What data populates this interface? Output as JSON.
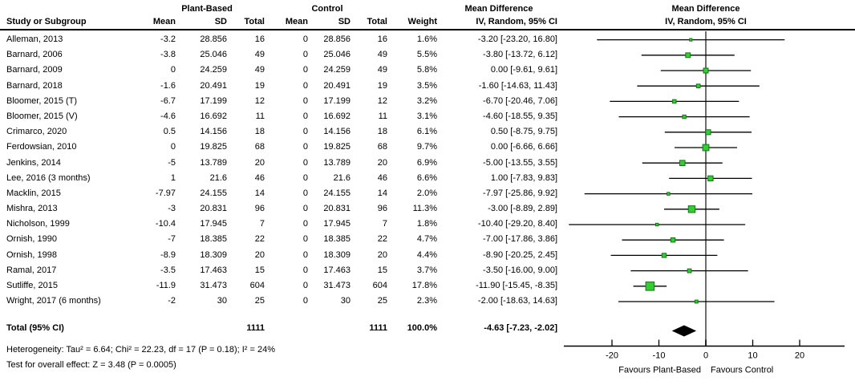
{
  "table": {
    "group1_header": "Plant-Based",
    "group2_header": "Control",
    "md_text_header": "Mean Difference",
    "columns": {
      "study": "Study or Subgroup",
      "mean1": "Mean",
      "sd1": "SD",
      "total1": "Total",
      "mean2": "Mean",
      "sd2": "SD",
      "total2": "Total",
      "weight": "Weight",
      "ci": "IV, Random, 95% CI"
    }
  },
  "plot_header": {
    "line1": "Mean Difference",
    "line2": "IV, Random, 95% CI"
  },
  "chart_data": {
    "type": "forest",
    "effect_measure": "Mean Difference",
    "model": "IV, Random, 95% CI",
    "studies": [
      {
        "name": "Alleman, 2013",
        "mean1": "-3.2",
        "sd1": "28.856",
        "n1": "16",
        "mean2": "0",
        "sd2": "28.856",
        "n2": "16",
        "weight": "1.6%",
        "weight_val": 1.6,
        "ci": "-3.20 [-23.20, 16.80]",
        "md": -3.2,
        "lo": -23.2,
        "hi": 16.8
      },
      {
        "name": "Barnard, 2006",
        "mean1": "-3.8",
        "sd1": "25.046",
        "n1": "49",
        "mean2": "0",
        "sd2": "25.046",
        "n2": "49",
        "weight": "5.5%",
        "weight_val": 5.5,
        "ci": "-3.80 [-13.72, 6.12]",
        "md": -3.8,
        "lo": -13.72,
        "hi": 6.12
      },
      {
        "name": "Barnard, 2009",
        "mean1": "0",
        "sd1": "24.259",
        "n1": "49",
        "mean2": "0",
        "sd2": "24.259",
        "n2": "49",
        "weight": "5.8%",
        "weight_val": 5.8,
        "ci": "0.00 [-9.61, 9.61]",
        "md": 0,
        "lo": -9.61,
        "hi": 9.61
      },
      {
        "name": "Barnard, 2018",
        "mean1": "-1.6",
        "sd1": "20.491",
        "n1": "19",
        "mean2": "0",
        "sd2": "20.491",
        "n2": "19",
        "weight": "3.5%",
        "weight_val": 3.5,
        "ci": "-1.60 [-14.63, 11.43]",
        "md": -1.6,
        "lo": -14.63,
        "hi": 11.43
      },
      {
        "name": "Bloomer, 2015 (T)",
        "mean1": "-6.7",
        "sd1": "17.199",
        "n1": "12",
        "mean2": "0",
        "sd2": "17.199",
        "n2": "12",
        "weight": "3.2%",
        "weight_val": 3.2,
        "ci": "-6.70 [-20.46, 7.06]",
        "md": -6.7,
        "lo": -20.46,
        "hi": 7.06
      },
      {
        "name": "Bloomer, 2015 (V)",
        "mean1": "-4.6",
        "sd1": "16.692",
        "n1": "11",
        "mean2": "0",
        "sd2": "16.692",
        "n2": "11",
        "weight": "3.1%",
        "weight_val": 3.1,
        "ci": "-4.60 [-18.55, 9.35]",
        "md": -4.6,
        "lo": -18.55,
        "hi": 9.35
      },
      {
        "name": "Crimarco, 2020",
        "mean1": "0.5",
        "sd1": "14.156",
        "n1": "18",
        "mean2": "0",
        "sd2": "14.156",
        "n2": "18",
        "weight": "6.1%",
        "weight_val": 6.1,
        "ci": "0.50 [-8.75, 9.75]",
        "md": 0.5,
        "lo": -8.75,
        "hi": 9.75
      },
      {
        "name": "Ferdowsian, 2010",
        "mean1": "0",
        "sd1": "19.825",
        "n1": "68",
        "mean2": "0",
        "sd2": "19.825",
        "n2": "68",
        "weight": "9.7%",
        "weight_val": 9.7,
        "ci": "0.00 [-6.66, 6.66]",
        "md": 0,
        "lo": -6.66,
        "hi": 6.66
      },
      {
        "name": "Jenkins, 2014",
        "mean1": "-5",
        "sd1": "13.789",
        "n1": "20",
        "mean2": "0",
        "sd2": "13.789",
        "n2": "20",
        "weight": "6.9%",
        "weight_val": 6.9,
        "ci": "-5.00 [-13.55, 3.55]",
        "md": -5,
        "lo": -13.55,
        "hi": 3.55
      },
      {
        "name": "Lee, 2016 (3 months)",
        "mean1": "1",
        "sd1": "21.6",
        "n1": "46",
        "mean2": "0",
        "sd2": "21.6",
        "n2": "46",
        "weight": "6.6%",
        "weight_val": 6.6,
        "ci": "1.00 [-7.83, 9.83]",
        "md": 1,
        "lo": -7.83,
        "hi": 9.83
      },
      {
        "name": "Macklin, 2015",
        "mean1": "-7.97",
        "sd1": "24.155",
        "n1": "14",
        "mean2": "0",
        "sd2": "24.155",
        "n2": "14",
        "weight": "2.0%",
        "weight_val": 2.0,
        "ci": "-7.97 [-25.86, 9.92]",
        "md": -7.97,
        "lo": -25.86,
        "hi": 9.92
      },
      {
        "name": "Mishra, 2013",
        "mean1": "-3",
        "sd1": "20.831",
        "n1": "96",
        "mean2": "0",
        "sd2": "20.831",
        "n2": "96",
        "weight": "11.3%",
        "weight_val": 11.3,
        "ci": "-3.00 [-8.89, 2.89]",
        "md": -3,
        "lo": -8.89,
        "hi": 2.89
      },
      {
        "name": "Nicholson, 1999",
        "mean1": "-10.4",
        "sd1": "17.945",
        "n1": "7",
        "mean2": "0",
        "sd2": "17.945",
        "n2": "7",
        "weight": "1.8%",
        "weight_val": 1.8,
        "ci": "-10.40 [-29.20, 8.40]",
        "md": -10.4,
        "lo": -29.2,
        "hi": 8.4
      },
      {
        "name": "Ornish, 1990",
        "mean1": "-7",
        "sd1": "18.385",
        "n1": "22",
        "mean2": "0",
        "sd2": "18.385",
        "n2": "22",
        "weight": "4.7%",
        "weight_val": 4.7,
        "ci": "-7.00 [-17.86, 3.86]",
        "md": -7,
        "lo": -17.86,
        "hi": 3.86
      },
      {
        "name": "Ornish, 1998",
        "mean1": "-8.9",
        "sd1": "18.309",
        "n1": "20",
        "mean2": "0",
        "sd2": "18.309",
        "n2": "20",
        "weight": "4.4%",
        "weight_val": 4.4,
        "ci": "-8.90 [-20.25, 2.45]",
        "md": -8.9,
        "lo": -20.25,
        "hi": 2.45
      },
      {
        "name": "Ramal, 2017",
        "mean1": "-3.5",
        "sd1": "17.463",
        "n1": "15",
        "mean2": "0",
        "sd2": "17.463",
        "n2": "15",
        "weight": "3.7%",
        "weight_val": 3.7,
        "ci": "-3.50 [-16.00, 9.00]",
        "md": -3.5,
        "lo": -16.0,
        "hi": 9.0
      },
      {
        "name": "Sutliffe, 2015",
        "mean1": "-11.9",
        "sd1": "31.473",
        "n1": "604",
        "mean2": "0",
        "sd2": "31.473",
        "n2": "604",
        "weight": "17.8%",
        "weight_val": 17.8,
        "ci": "-11.90 [-15.45, -8.35]",
        "md": -11.9,
        "lo": -15.45,
        "hi": -8.35
      },
      {
        "name": "Wright, 2017 (6 months)",
        "mean1": "-2",
        "sd1": "30",
        "n1": "25",
        "mean2": "0",
        "sd2": "30",
        "n2": "25",
        "weight": "2.3%",
        "weight_val": 2.3,
        "ci": "-2.00 [-18.63, 14.63]",
        "md": -2,
        "lo": -18.63,
        "hi": 14.63
      }
    ],
    "total": {
      "label": "Total (95% CI)",
      "n1": "1111",
      "n2": "1111",
      "weight": "100.0%",
      "ci": "-4.63 [-7.23, -2.02]",
      "md": -4.63,
      "lo": -7.23,
      "hi": -2.02
    },
    "footnotes": {
      "heterogeneity": "Heterogeneity: Tau² = 6.64; Chi² = 22.23, df = 17 (P = 0.18); I² = 24%",
      "overall_effect": "Test for overall effect: Z = 3.48 (P = 0.0005)"
    },
    "axis": {
      "ticks": [
        -20,
        -10,
        0,
        10,
        20
      ],
      "xmin": -30.3,
      "xmax": 29.5,
      "favours_left": "Favours Plant-Based",
      "favours_right": "Favours Control"
    },
    "layout": {
      "legend": "none",
      "grid": false,
      "zero_line": true
    }
  },
  "colors": {
    "marker_fill": "#33cc33",
    "marker_border": "#117711",
    "ci_line": "#000000",
    "zero_line": "#6e6e6e",
    "axis": "#000000",
    "diamond": "#000000",
    "text": "#000000"
  }
}
